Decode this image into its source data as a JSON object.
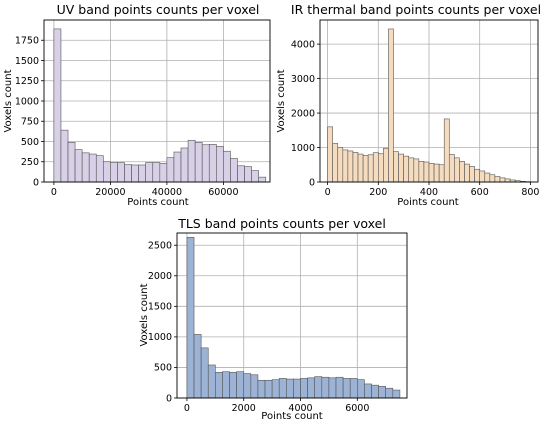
{
  "chart_data": [
    {
      "id": "uv",
      "type": "bar",
      "title": "UV band points counts per voxel",
      "xlabel": "Points count",
      "ylabel": "Voxels count",
      "color": "#d8d0e6",
      "xlim": [
        -3500,
        76500
      ],
      "ylim": [
        0,
        2000
      ],
      "xticks": [
        0,
        20000,
        40000,
        60000
      ],
      "yticks": [
        0,
        250,
        500,
        750,
        1000,
        1250,
        1500,
        1750
      ],
      "bin_width": 2500,
      "bin_starts": [
        0,
        2500,
        5000,
        7500,
        10000,
        12500,
        15000,
        17500,
        20000,
        22500,
        25000,
        27500,
        30000,
        32500,
        35000,
        37500,
        40000,
        42500,
        45000,
        47500,
        50000,
        52500,
        55000,
        57500,
        60000,
        62500,
        65000,
        67500,
        70000,
        72500
      ],
      "values": [
        1890,
        640,
        490,
        400,
        360,
        345,
        325,
        250,
        240,
        240,
        215,
        210,
        210,
        240,
        240,
        230,
        300,
        370,
        420,
        515,
        490,
        460,
        465,
        440,
        380,
        290,
        200,
        190,
        140,
        60
      ]
    },
    {
      "id": "ir",
      "type": "bar",
      "title": "IR thermal band points counts per voxel",
      "xlabel": "Points count",
      "ylabel": "Voxels count",
      "color": "#f5dcbf",
      "xlim": [
        -30,
        830
      ],
      "ylim": [
        0,
        4700
      ],
      "xticks": [
        0,
        200,
        400,
        600,
        800
      ],
      "yticks": [
        0,
        1000,
        2000,
        3000,
        4000
      ],
      "bin_width": 20,
      "bin_starts": [
        0,
        20,
        40,
        60,
        80,
        100,
        120,
        140,
        160,
        180,
        200,
        220,
        240,
        260,
        280,
        300,
        320,
        340,
        360,
        380,
        400,
        420,
        440,
        460,
        480,
        500,
        520,
        540,
        560,
        580,
        600,
        620,
        640,
        660,
        680,
        700,
        720,
        740,
        760,
        780
      ],
      "values": [
        1600,
        1120,
        1000,
        930,
        900,
        860,
        810,
        770,
        790,
        850,
        820,
        980,
        4440,
        880,
        810,
        750,
        700,
        670,
        600,
        580,
        540,
        520,
        500,
        1830,
        800,
        700,
        600,
        520,
        450,
        370,
        320,
        260,
        210,
        160,
        120,
        90,
        60,
        40,
        20,
        10
      ]
    },
    {
      "id": "tls",
      "type": "bar",
      "title": "TLS band points counts per voxel",
      "xlabel": "Points count",
      "ylabel": "Voxels count",
      "color": "#9db3d6",
      "xlim": [
        -350,
        7750
      ],
      "ylim": [
        0,
        2700
      ],
      "xticks": [
        0,
        2000,
        4000,
        6000
      ],
      "yticks": [
        0,
        500,
        1000,
        1500,
        2000,
        2500
      ],
      "bin_width": 250,
      "bin_starts": [
        0,
        250,
        500,
        750,
        1000,
        1250,
        1500,
        1750,
        2000,
        2250,
        2500,
        2750,
        3000,
        3250,
        3500,
        3750,
        4000,
        4250,
        4500,
        4750,
        5000,
        5250,
        5500,
        5750,
        6000,
        6250,
        6500,
        6750,
        7000,
        7250
      ],
      "values": [
        2630,
        1040,
        820,
        540,
        420,
        430,
        420,
        430,
        400,
        380,
        290,
        290,
        300,
        320,
        310,
        310,
        320,
        330,
        350,
        340,
        330,
        340,
        320,
        320,
        300,
        230,
        210,
        190,
        160,
        130
      ]
    }
  ]
}
